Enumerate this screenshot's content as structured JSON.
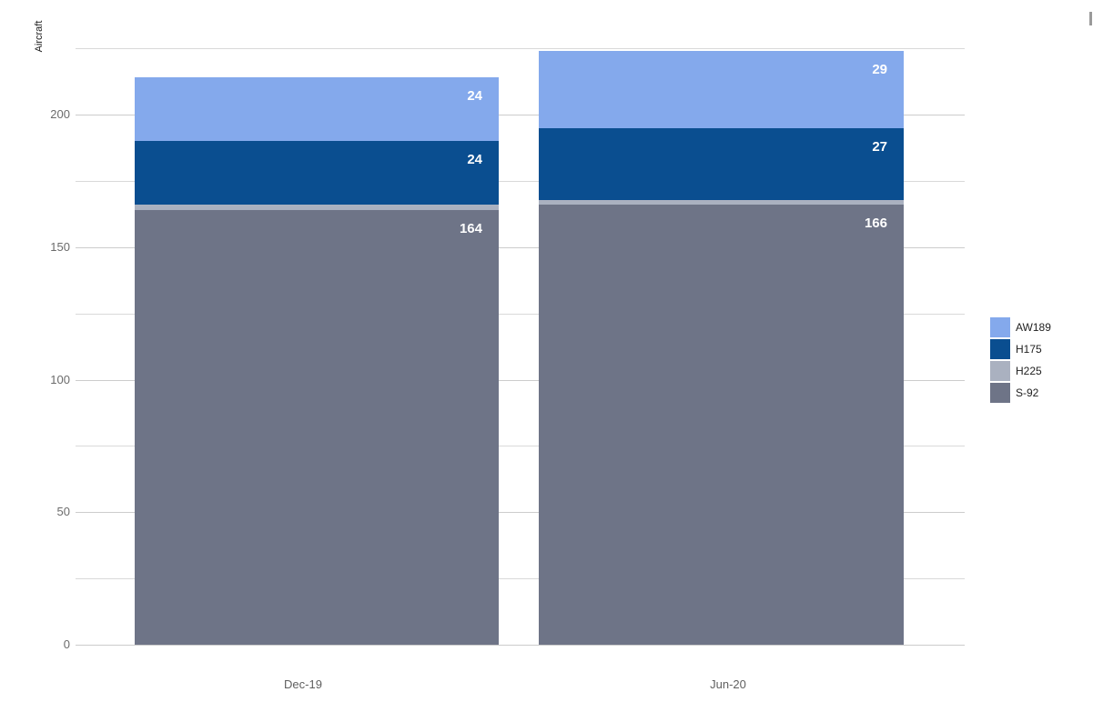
{
  "page": {
    "background": "#ffffff"
  },
  "chart_data": {
    "type": "bar",
    "stacked": true,
    "title": "",
    "xlabel": "",
    "ylabel": "Aircraft",
    "categories": [
      "Dec-19",
      "Jun-20"
    ],
    "series": [
      {
        "name": "S-92",
        "color": "#6E7487",
        "values": [
          164,
          166
        ],
        "labels": [
          "164",
          "166"
        ]
      },
      {
        "name": "H225",
        "color": "#AAB1C0",
        "values": [
          2,
          2
        ],
        "labels": [
          "",
          ""
        ]
      },
      {
        "name": "H175",
        "color": "#0A4E90",
        "values": [
          24,
          27
        ],
        "labels": [
          "24",
          "27"
        ]
      },
      {
        "name": "AW189",
        "color": "#84A9EC",
        "values": [
          24,
          29
        ],
        "labels": [
          "24",
          "29"
        ]
      }
    ],
    "totals": [
      214,
      224
    ],
    "y_axis": {
      "ticks": [
        0,
        50,
        100,
        150,
        200
      ],
      "minor_ticks": [
        25,
        75,
        125,
        175,
        225
      ],
      "ylim": [
        0,
        228
      ],
      "grid": true
    },
    "legend": {
      "position": "right",
      "order": [
        "AW189",
        "H175",
        "H225",
        "S-92"
      ]
    },
    "label_color": "#ffffff"
  }
}
